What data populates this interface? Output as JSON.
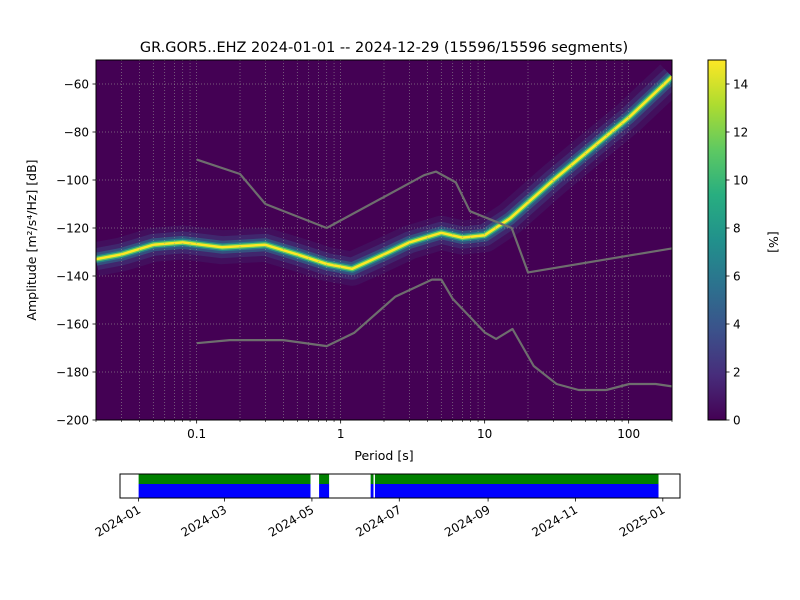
{
  "figure": {
    "title": "GR.GOR5..EHZ   2024-01-01 -- 2024-12-29  (15596/15596 segments)"
  },
  "chart_data": [
    {
      "type": "heatmap",
      "title": "GR.GOR5..EHZ   2024-01-01 -- 2024-12-29  (15596/15596 segments)",
      "xlabel": "Period [s]",
      "ylabel": "Amplitude [m²/s⁴/Hz] [dB]",
      "x_scale": "log",
      "xlim": [
        0.02,
        200
      ],
      "ylim": [
        -200,
        -50
      ],
      "x_ticks": [
        {
          "value": 0.1,
          "label": "0.1"
        },
        {
          "value": 1,
          "label": "1"
        },
        {
          "value": 10,
          "label": "10"
        },
        {
          "value": 100,
          "label": "100"
        }
      ],
      "y_ticks": [
        -60,
        -80,
        -100,
        -120,
        -140,
        -160,
        -180,
        -200
      ],
      "grid": true,
      "colorbar": {
        "label": "[%]",
        "range": [
          0,
          15
        ],
        "ticks": [
          0,
          2,
          4,
          6,
          8,
          10,
          12,
          14
        ],
        "colormap": "viridis"
      },
      "ridge": [
        {
          "x": 0.02,
          "y": -133
        },
        {
          "x": 0.03,
          "y": -131
        },
        {
          "x": 0.05,
          "y": -127
        },
        {
          "x": 0.08,
          "y": -126
        },
        {
          "x": 0.15,
          "y": -128
        },
        {
          "x": 0.3,
          "y": -127
        },
        {
          "x": 0.5,
          "y": -131
        },
        {
          "x": 0.8,
          "y": -135
        },
        {
          "x": 1.2,
          "y": -137
        },
        {
          "x": 2,
          "y": -131
        },
        {
          "x": 3,
          "y": -126
        },
        {
          "x": 5,
          "y": -122
        },
        {
          "x": 7,
          "y": -124
        },
        {
          "x": 10,
          "y": -123
        },
        {
          "x": 15,
          "y": -116
        },
        {
          "x": 30,
          "y": -100
        },
        {
          "x": 60,
          "y": -85
        },
        {
          "x": 100,
          "y": -74
        },
        {
          "x": 200,
          "y": -57
        }
      ],
      "series": [
        {
          "values": [
            {
              "x": 0.1,
              "y": -91.5
            },
            {
              "x": 0.2,
              "y": -97.5
            },
            {
              "x": 0.3,
              "y": -110
            },
            {
              "x": 0.8,
              "y": -120
            },
            {
              "x": 3.8,
              "y": -98
            },
            {
              "x": 4.6,
              "y": -96.5
            },
            {
              "x": 6.3,
              "y": -101
            },
            {
              "x": 7.9,
              "y": -113
            },
            {
              "x": 15.4,
              "y": -120
            },
            {
              "x": 20,
              "y": -138.5
            },
            {
              "x": 200,
              "y": -128.5
            }
          ]
        },
        {
          "values": [
            {
              "x": 0.1,
              "y": -168
            },
            {
              "x": 0.17,
              "y": -166.7
            },
            {
              "x": 0.4,
              "y": -166.7
            },
            {
              "x": 0.8,
              "y": -169.2
            },
            {
              "x": 1.24,
              "y": -163.7
            },
            {
              "x": 2.4,
              "y": -148.6
            },
            {
              "x": 4.3,
              "y": -141.5
            },
            {
              "x": 5,
              "y": -141.5
            },
            {
              "x": 6,
              "y": -149.5
            },
            {
              "x": 10,
              "y": -163.5
            },
            {
              "x": 12,
              "y": -166.2
            },
            {
              "x": 15.6,
              "y": -162.1
            },
            {
              "x": 21.9,
              "y": -177.5
            },
            {
              "x": 31.6,
              "y": -185
            },
            {
              "x": 45,
              "y": -187.5
            },
            {
              "x": 70,
              "y": -187.5
            },
            {
              "x": 101,
              "y": -185
            },
            {
              "x": 154,
              "y": -185
            },
            {
              "x": 200,
              "y": -186
            }
          ]
        }
      ]
    },
    {
      "type": "timeline",
      "x_ticks": [
        "2024-01",
        "2024-03",
        "2024-05",
        "2024-07",
        "2024-09",
        "2024-11",
        "2025-01"
      ],
      "x_tick_dates": [
        "2024-01-01",
        "2024-03-01",
        "2024-05-01",
        "2024-07-01",
        "2024-09-01",
        "2024-11-01",
        "2025-01-01"
      ],
      "xlim": [
        "2023-12-19",
        "2025-01-13"
      ],
      "coverage": [
        {
          "start": "2024-01-01",
          "end": "2024-04-30"
        },
        {
          "start": "2024-05-06",
          "end": "2024-05-13"
        },
        {
          "start": "2024-06-11",
          "end": "2024-06-13"
        },
        {
          "start": "2024-06-14",
          "end": "2024-12-29"
        }
      ],
      "colors": {
        "available": "#0000ff",
        "processed": "#008000"
      }
    }
  ]
}
